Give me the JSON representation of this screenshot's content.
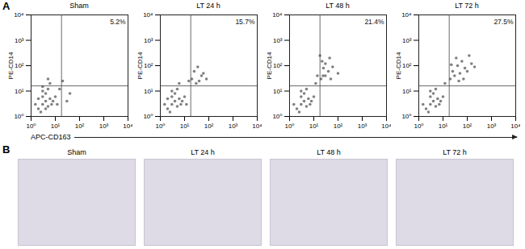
{
  "panel_labels": [
    "A",
    "B"
  ],
  "x_label": "APC-CD163",
  "chart_data": [
    {
      "type": "scatter",
      "title": "Sham",
      "y_label": "PE-CD14",
      "annotation": "5.2%",
      "log": true,
      "color": "#555555",
      "xlim": [
        1,
        10000
      ],
      "ylim": [
        1,
        10000
      ],
      "xticks": [
        {
          "value": 1,
          "label": "10⁰"
        },
        {
          "value": 10,
          "label": "10¹"
        },
        {
          "value": 100,
          "label": "10²"
        },
        {
          "value": 1000,
          "label": "10³"
        },
        {
          "value": 10000,
          "label": "10⁴"
        }
      ],
      "yticks": [
        {
          "value": 1,
          "label": "10⁰"
        },
        {
          "value": 10,
          "label": "10¹"
        },
        {
          "value": 100,
          "label": "10²"
        },
        {
          "value": 1000,
          "label": "10³"
        },
        {
          "value": 10000,
          "label": "10⁴"
        }
      ],
      "quadrant": {
        "x": 18,
        "y": 16
      },
      "x": [
        2,
        3,
        4,
        5,
        3,
        2.5,
        6,
        4,
        1.5,
        8,
        3,
        5,
        2,
        7,
        4,
        10,
        12,
        3,
        6,
        20,
        30,
        5,
        15,
        40
      ],
      "values": [
        2,
        3,
        4,
        2.5,
        6,
        1.5,
        5,
        8,
        3,
        4,
        10,
        12,
        5,
        3,
        2,
        6,
        3,
        15,
        20,
        25,
        4,
        30,
        12,
        8
      ]
    },
    {
      "type": "scatter",
      "title": "LT 24 h",
      "y_label": "PE-CD14",
      "annotation": "15.7%",
      "log": true,
      "color": "#555555",
      "xlim": [
        1,
        10000
      ],
      "ylim": [
        1,
        10000
      ],
      "xticks": [
        {
          "value": 1,
          "label": "10⁰"
        },
        {
          "value": 10,
          "label": "10¹"
        },
        {
          "value": 100,
          "label": "10²"
        },
        {
          "value": 1000,
          "label": "10³"
        },
        {
          "value": 10000,
          "label": "10⁴"
        }
      ],
      "yticks": [
        {
          "value": 1,
          "label": "10⁰"
        },
        {
          "value": 10,
          "label": "10¹"
        },
        {
          "value": 100,
          "label": "10²"
        },
        {
          "value": 1000,
          "label": "10³"
        },
        {
          "value": 10000,
          "label": "10⁴"
        }
      ],
      "quadrant": {
        "x": 18,
        "y": 16
      },
      "x": [
        2,
        3,
        4,
        5,
        3,
        2.5,
        6,
        4,
        1.5,
        8,
        3,
        5,
        2,
        7,
        10,
        12,
        6,
        20,
        30,
        50,
        25,
        40,
        60,
        15,
        35,
        80
      ],
      "values": [
        2,
        3,
        4,
        2.5,
        6,
        1.5,
        5,
        8,
        3,
        4,
        10,
        12,
        5,
        3,
        6,
        3,
        20,
        30,
        20,
        40,
        60,
        25,
        50,
        25,
        90,
        30
      ]
    },
    {
      "type": "scatter",
      "title": "LT 48 h",
      "y_label": "PE-CD14",
      "annotation": "21.4%",
      "log": true,
      "color": "#555555",
      "xlim": [
        1,
        10000
      ],
      "ylim": [
        1,
        10000
      ],
      "xticks": [
        {
          "value": 1,
          "label": "10⁰"
        },
        {
          "value": 10,
          "label": "10¹"
        },
        {
          "value": 100,
          "label": "10²"
        },
        {
          "value": 1000,
          "label": "10³"
        },
        {
          "value": 10000,
          "label": "10⁴"
        }
      ],
      "yticks": [
        {
          "value": 1,
          "label": "10⁰"
        },
        {
          "value": 10,
          "label": "10¹"
        },
        {
          "value": 100,
          "label": "10²"
        },
        {
          "value": 1000,
          "label": "10³"
        },
        {
          "value": 10000,
          "label": "10⁴"
        }
      ],
      "quadrant": {
        "x": 18,
        "y": 16
      },
      "x": [
        2,
        3,
        4,
        5,
        3,
        2.5,
        6,
        4,
        1.5,
        8,
        3,
        5,
        7,
        10,
        12,
        20,
        25,
        30,
        22,
        40,
        18,
        50,
        30,
        60,
        24,
        45,
        100,
        14
      ],
      "values": [
        2,
        3,
        4,
        2.5,
        6,
        1.5,
        5,
        8,
        3,
        4,
        10,
        12,
        3,
        6,
        20,
        30,
        80,
        40,
        150,
        60,
        250,
        30,
        120,
        90,
        40,
        200,
        50,
        40
      ]
    },
    {
      "type": "scatter",
      "title": "LT 72 h",
      "y_label": "PE-CD14",
      "annotation": "27.5%",
      "log": true,
      "color": "#555555",
      "xlim": [
        1,
        10000
      ],
      "ylim": [
        1,
        10000
      ],
      "xticks": [
        {
          "value": 1,
          "label": "10⁰"
        },
        {
          "value": 10,
          "label": "10¹"
        },
        {
          "value": 100,
          "label": "10²"
        },
        {
          "value": 1000,
          "label": "10³"
        },
        {
          "value": 10000,
          "label": "10⁴"
        }
      ],
      "yticks": [
        {
          "value": 1,
          "label": "10⁰"
        },
        {
          "value": 10,
          "label": "10¹"
        },
        {
          "value": 100,
          "label": "10²"
        },
        {
          "value": 1000,
          "label": "10³"
        },
        {
          "value": 10000,
          "label": "10⁴"
        }
      ],
      "quadrant": {
        "x": 18,
        "y": 16
      },
      "x": [
        2,
        3,
        4,
        5,
        3,
        2.5,
        6,
        4,
        1.5,
        8,
        3,
        5,
        7,
        10,
        12,
        20,
        25,
        30,
        40,
        50,
        60,
        80,
        100,
        150,
        200,
        35,
        70,
        22,
        120,
        45
      ],
      "values": [
        2,
        3,
        4,
        2.5,
        6,
        1.5,
        5,
        8,
        3,
        4,
        10,
        12,
        3,
        6,
        20,
        30,
        60,
        40,
        100,
        50,
        150,
        80,
        60,
        120,
        90,
        200,
        30,
        110,
        250,
        25
      ]
    }
  ],
  "images": {
    "titles": [
      "Sham",
      "LT 24 h",
      "LT 48 h",
      "LT 72 h"
    ]
  }
}
